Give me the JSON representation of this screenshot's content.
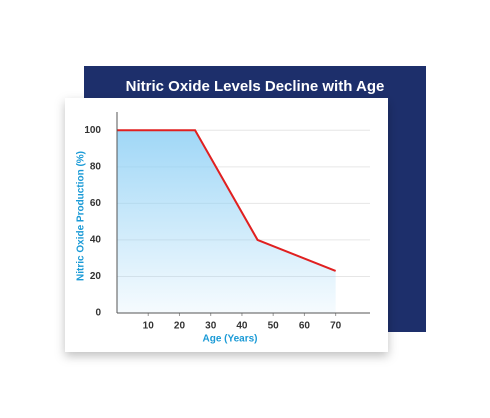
{
  "chart_data": {
    "type": "line",
    "title": "Nitric Oxide Levels Decline with Age",
    "x_label": "Age (Years)",
    "y_label": "Nitric Oxide Production (%)",
    "x": [
      0,
      25,
      45,
      70
    ],
    "series": [
      {
        "name": "Nitric Oxide Production",
        "color": "#e02020",
        "values": [
          100,
          100,
          40,
          23
        ]
      }
    ],
    "xlim": [
      0,
      81
    ],
    "xticks": [
      10,
      20,
      30,
      40,
      50,
      60,
      70
    ],
    "ylim": [
      0,
      110
    ],
    "yticks": [
      0,
      20,
      40,
      60,
      80,
      100
    ],
    "grid": true,
    "area_fill": "#8fd0f5"
  }
}
